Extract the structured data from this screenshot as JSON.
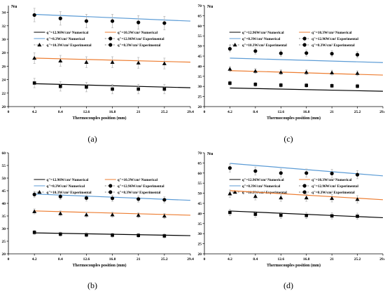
{
  "colors": {
    "blue": "#5b9bd5",
    "orange": "#ed7d31",
    "black": "#000000",
    "errorbar": "#b8b8b8"
  },
  "chart_data": [
    {
      "id": "a",
      "type": "line",
      "caption": "(a)",
      "ylabel": "Nu",
      "xlabel": "Thermocouples position (mm)",
      "xlim": [
        0,
        29.4
      ],
      "ylim": [
        20,
        35
      ],
      "x_ticks": [
        "0",
        "4.2",
        "8.4",
        "12.6",
        "16.8",
        "21",
        "25.2",
        "29.4"
      ],
      "y_ticks": [
        "20",
        "22",
        "24",
        "26",
        "28",
        "30",
        "32",
        "34"
      ],
      "legend": [
        {
          "label": "q\"=12.96W/cm² Numerical",
          "kind": "line",
          "color": "black"
        },
        {
          "label": "q\"=10.3W/cm² Numerical",
          "kind": "line",
          "color": "orange"
        },
        {
          "label": "q\"=8.3W/cm² Numerical",
          "kind": "line",
          "color": "blue"
        },
        {
          "label": "q\"=12.96W/cm² Experimental",
          "kind": "marker",
          "marker": "circle"
        },
        {
          "label": "q\"=10.3W/cm² Experimental",
          "kind": "marker",
          "marker": "triangle"
        },
        {
          "label": "q\"=8.3W/cm² Experimental",
          "kind": "marker",
          "marker": "circle"
        }
      ],
      "lines": [
        {
          "color": "blue",
          "x": [
            4.2,
            29.4
          ],
          "y": [
            33.7,
            32.7
          ]
        },
        {
          "color": "orange",
          "x": [
            4.2,
            29.4
          ],
          "y": [
            27.2,
            26.6
          ]
        },
        {
          "color": "black",
          "x": [
            4.2,
            29.4
          ],
          "y": [
            23.4,
            22.8
          ]
        }
      ],
      "points": [
        {
          "marker": "circle",
          "x": [
            4.2,
            8.4,
            12.6,
            16.8,
            21,
            25.2
          ],
          "y": [
            33.6,
            33.1,
            32.7,
            32.7,
            32.5,
            32.4
          ],
          "err": 1.0
        },
        {
          "marker": "triangle",
          "x": [
            4.2,
            8.4,
            12.6,
            16.8,
            21,
            25.2
          ],
          "y": [
            27.2,
            26.8,
            26.6,
            26.6,
            26.5,
            26.4
          ],
          "err": 0.8
        },
        {
          "marker": "square",
          "x": [
            4.2,
            8.4,
            12.6,
            16.8,
            21,
            25.2
          ],
          "y": [
            23.5,
            23.0,
            22.9,
            22.6,
            22.6,
            22.6
          ],
          "err": 0.7
        }
      ]
    },
    {
      "id": "c",
      "type": "line",
      "caption": "(c)",
      "ylabel": "Nu",
      "xlabel": "Thermocouples position (mm)",
      "xlim": [
        0,
        29.4
      ],
      "ylim": [
        20,
        70
      ],
      "x_ticks": [
        "0",
        "4.2",
        "8.4",
        "12.6",
        "16.8",
        "21",
        "25.2",
        "29.4"
      ],
      "y_ticks": [
        "20",
        "25",
        "30",
        "35",
        "40",
        "45",
        "50",
        "55",
        "60",
        "65",
        "70"
      ],
      "legend": [
        {
          "label": "q\"=12.96W/cm² Numerical",
          "kind": "line",
          "color": "black"
        },
        {
          "label": "q\"=10.3W/cm² Numerical",
          "kind": "line",
          "color": "orange"
        },
        {
          "label": "q\"=8.3W/cm² Numerical",
          "kind": "line",
          "color": "blue"
        },
        {
          "label": "q\"=12.96W/cm² Experimental",
          "kind": "marker",
          "marker": "circle"
        },
        {
          "label": "q\"=10.3W/cm² Experimental",
          "kind": "marker",
          "marker": "triangle"
        },
        {
          "label": "q\"=8.3W/cm² Experimental",
          "kind": "marker",
          "marker": "circle"
        }
      ],
      "lines": [
        {
          "color": "blue",
          "x": [
            4.2,
            29.4
          ],
          "y": [
            44.0,
            41.8
          ]
        },
        {
          "color": "orange",
          "x": [
            4.2,
            29.4
          ],
          "y": [
            37.8,
            35.6
          ]
        },
        {
          "color": "black",
          "x": [
            4.2,
            29.4
          ],
          "y": [
            29.2,
            27.6
          ]
        }
      ],
      "points": [
        {
          "marker": "circle",
          "x": [
            4.2,
            8.4,
            12.6,
            16.8,
            21,
            25.2
          ],
          "y": [
            48.6,
            47.5,
            46.4,
            46.5,
            46.2,
            45.7
          ],
          "err": 1.5
        },
        {
          "marker": "triangle",
          "x": [
            4.2,
            8.4,
            12.6,
            16.8,
            21,
            25.2
          ],
          "y": [
            38.6,
            37.6,
            37.0,
            37.0,
            36.8,
            36.5
          ],
          "err": 1.2
        },
        {
          "marker": "square",
          "x": [
            4.2,
            8.4,
            12.6,
            16.8,
            21,
            25.2
          ],
          "y": [
            31.6,
            31.0,
            30.6,
            30.5,
            30.3,
            30.1
          ],
          "err": 1.0
        }
      ]
    },
    {
      "id": "b",
      "type": "line",
      "caption": "(b)",
      "ylabel": "",
      "xlabel": "Thermocouples position (mm)",
      "xlim": [
        0,
        29.4
      ],
      "ylim": [
        20,
        60
      ],
      "x_ticks": [
        "0",
        "4.2",
        "8.4",
        "12.6",
        "16.8",
        "21",
        "25.2",
        "29.4"
      ],
      "y_ticks": [
        "20",
        "25",
        "30",
        "35",
        "40",
        "45",
        "50",
        "55",
        "60"
      ],
      "legend": [
        {
          "label": "q\"=12.96W/cm² Numerical",
          "kind": "line",
          "color": "black"
        },
        {
          "label": "q\"=10.3W/cm² Numerical",
          "kind": "line",
          "color": "orange"
        },
        {
          "label": "q\"=8.3W/cm² Numerical",
          "kind": "line",
          "color": "blue"
        },
        {
          "label": "q\"=12.96W/cm² Experimental",
          "kind": "marker",
          "marker": "circle"
        },
        {
          "label": "q\"=10.3W/cm² Experimental",
          "kind": "marker",
          "marker": "triangle"
        },
        {
          "label": "q\"=8.3W/cm² Experimental",
          "kind": "marker",
          "marker": "circle"
        }
      ],
      "lines": [
        {
          "color": "blue",
          "x": [
            4.2,
            29.4
          ],
          "y": [
            43.7,
            41.2
          ]
        },
        {
          "color": "orange",
          "x": [
            4.2,
            29.4
          ],
          "y": [
            37.0,
            35.3
          ]
        },
        {
          "color": "black",
          "x": [
            4.2,
            29.4
          ],
          "y": [
            28.3,
            27.2
          ]
        }
      ],
      "points": [
        {
          "marker": "circle",
          "x": [
            4.2,
            8.4,
            12.6,
            16.8,
            21,
            25.2
          ],
          "y": [
            43.5,
            42.7,
            42.1,
            42.0,
            41.7,
            41.4
          ],
          "err": 1.2
        },
        {
          "marker": "triangle",
          "x": [
            4.2,
            8.4,
            12.6,
            16.8,
            21,
            25.2
          ],
          "y": [
            36.8,
            36.0,
            35.5,
            35.5,
            35.3,
            35.0
          ],
          "err": 1.0
        },
        {
          "marker": "square",
          "x": [
            4.2,
            8.4,
            12.6,
            16.8,
            21,
            25.2
          ],
          "y": [
            28.5,
            27.8,
            27.5,
            27.4,
            27.3,
            27.1
          ],
          "err": 0.8
        }
      ]
    },
    {
      "id": "d",
      "type": "line",
      "caption": "(d)",
      "ylabel": "Nu",
      "xlabel": "Thermocouples position (mm)",
      "xlim": [
        0,
        29.4
      ],
      "ylim": [
        20,
        70
      ],
      "x_ticks": [
        "0",
        "4.2",
        "8.4",
        "12.6",
        "16.8",
        "21",
        "25.2",
        "29.4"
      ],
      "y_ticks": [
        "20",
        "25",
        "30",
        "35",
        "40",
        "45",
        "50",
        "55",
        "60",
        "65",
        "70"
      ],
      "legend": [
        {
          "label": "q\"=12.96W/cm² Numerical",
          "kind": "line",
          "color": "black"
        },
        {
          "label": "q\"=10.3W/cm² Numerical",
          "kind": "line",
          "color": "orange"
        },
        {
          "label": "q\"=8.3W/cm² Numerical",
          "kind": "line",
          "color": "blue"
        },
        {
          "label": "q\"=12.96W/cm² Experimental",
          "kind": "marker",
          "marker": "circle"
        },
        {
          "label": "q\"=10.3W/cm² Experimental",
          "kind": "marker",
          "marker": "triangle"
        },
        {
          "label": "q\"=8.3W/cm² Experimental",
          "kind": "marker",
          "marker": "circle"
        }
      ],
      "lines": [
        {
          "color": "blue",
          "x": [
            4.2,
            29.4
          ],
          "y": [
            64.8,
            58.6
          ]
        },
        {
          "color": "orange",
          "x": [
            4.2,
            29.4
          ],
          "y": [
            51.3,
            46.8
          ]
        },
        {
          "color": "black",
          "x": [
            4.2,
            29.4
          ],
          "y": [
            41.2,
            37.9
          ]
        }
      ],
      "points": [
        {
          "marker": "circle",
          "x": [
            4.2,
            8.4,
            12.6,
            16.8,
            21,
            25.2
          ],
          "y": [
            62.5,
            61.0,
            60.0,
            60.0,
            59.8,
            59.2
          ],
          "err": 2.0
        },
        {
          "marker": "triangle",
          "x": [
            4.2,
            8.4,
            12.6,
            16.8,
            21,
            25.2
          ],
          "y": [
            49.8,
            48.5,
            47.8,
            47.8,
            47.5,
            47.0
          ],
          "err": 1.8
        },
        {
          "marker": "square",
          "x": [
            4.2,
            8.4,
            12.6,
            16.8,
            21,
            25.2
          ],
          "y": [
            40.5,
            39.6,
            39.1,
            39.0,
            38.8,
            38.6
          ],
          "err": 1.5
        }
      ]
    }
  ]
}
